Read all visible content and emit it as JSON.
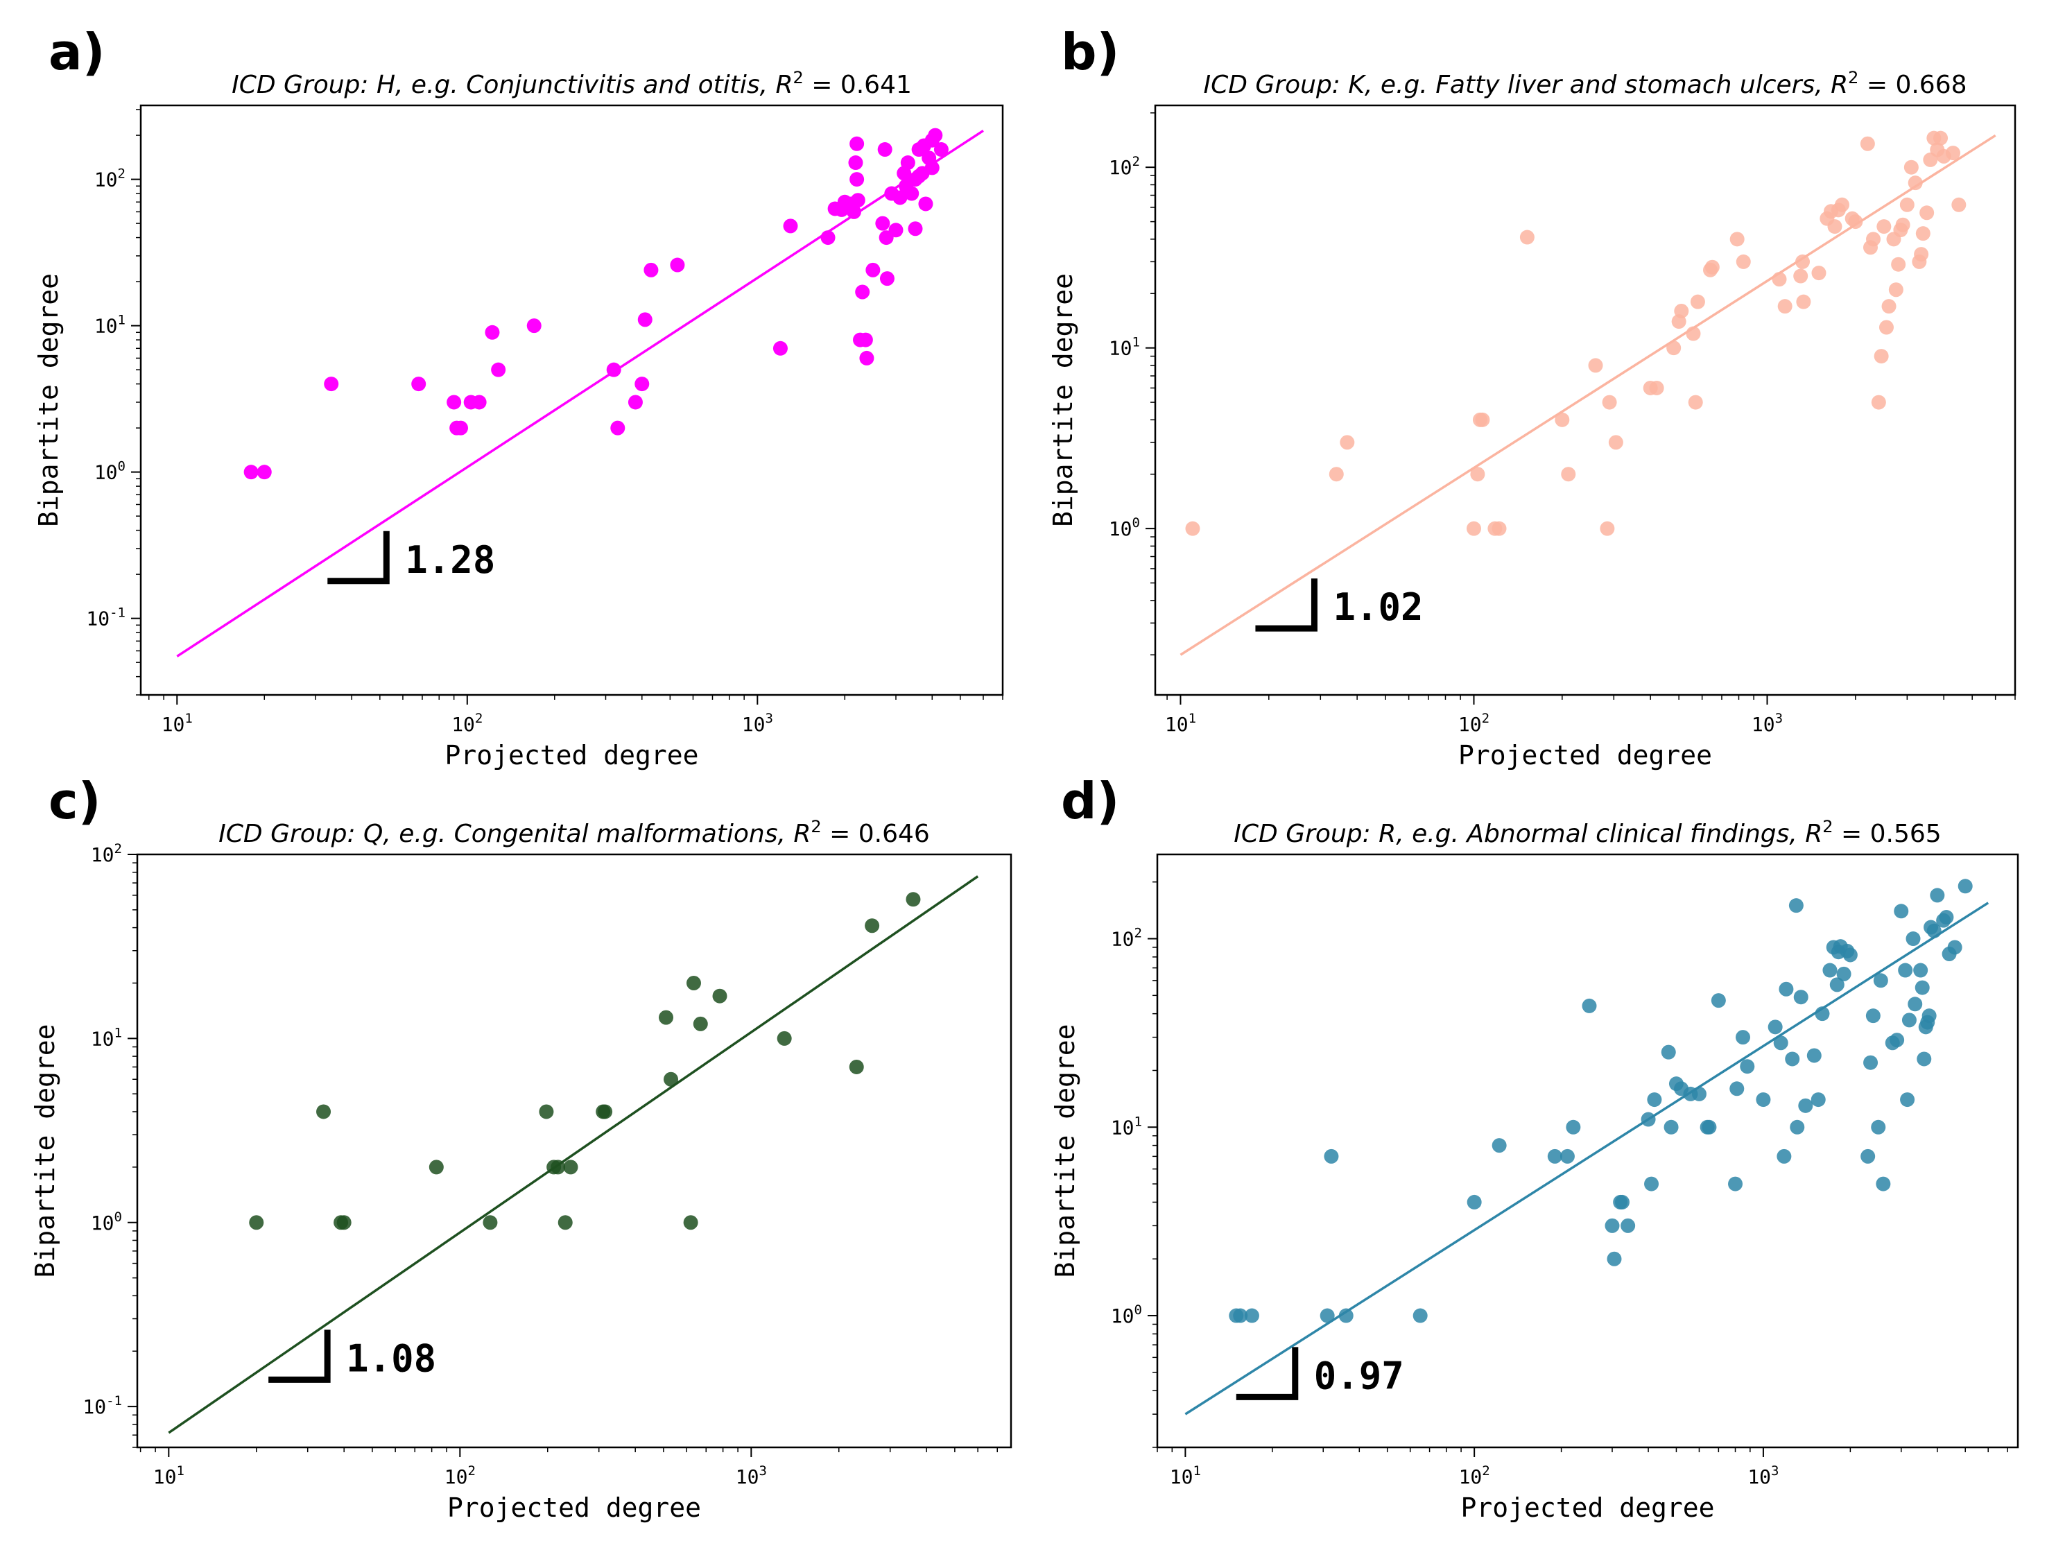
{
  "chart_data": [
    {
      "type": "scatter",
      "panel_label": "a)",
      "title": "ICD Group: H, e.g. Conjunctivitis and otitis, R² = 0.641",
      "title_parts": {
        "prefix": "ICD Group",
        "code": "H",
        "example": "Conjunctivitis and otitis",
        "r2_label": "R",
        "r2_value": "0.641"
      },
      "xlabel": "Projected degree",
      "ylabel": "Bipartite degree",
      "xscale": "log",
      "yscale": "log",
      "xlim": [
        7.5,
        7000
      ],
      "ylim": [
        0.03,
        320
      ],
      "xticks": [
        {
          "exp": "1",
          "value": 10
        },
        {
          "exp": "2",
          "value": 100
        },
        {
          "exp": "3",
          "value": 1000
        }
      ],
      "yticks": [
        {
          "exp": "-1",
          "value": 0.1
        },
        {
          "exp": "0",
          "value": 1
        },
        {
          "exp": "1",
          "value": 10
        },
        {
          "exp": "2",
          "value": 100
        }
      ],
      "color": "#ff00ff",
      "fit_line": {
        "x": [
          10,
          6000
        ],
        "y": [
          0.055,
          215
        ]
      },
      "slope_label": "1.28",
      "slope_marker": {
        "x": 33,
        "y": 0.18
      },
      "points": [
        [
          18,
          1
        ],
        [
          20,
          1
        ],
        [
          34,
          4
        ],
        [
          68,
          4
        ],
        [
          90,
          3
        ],
        [
          92,
          2
        ],
        [
          95,
          2
        ],
        [
          103,
          3
        ],
        [
          110,
          3
        ],
        [
          122,
          9
        ],
        [
          128,
          5
        ],
        [
          170,
          10
        ],
        [
          320,
          5
        ],
        [
          330,
          2
        ],
        [
          380,
          3
        ],
        [
          400,
          4
        ],
        [
          410,
          11
        ],
        [
          430,
          24
        ],
        [
          530,
          26
        ],
        [
          1200,
          7
        ],
        [
          1300,
          48
        ],
        [
          1750,
          40
        ],
        [
          1850,
          63
        ],
        [
          1950,
          62
        ],
        [
          2000,
          70
        ],
        [
          2050,
          65
        ],
        [
          2100,
          68
        ],
        [
          2150,
          60
        ],
        [
          2180,
          130
        ],
        [
          2200,
          175
        ],
        [
          2200,
          100
        ],
        [
          2220,
          72
        ],
        [
          2260,
          8
        ],
        [
          2300,
          17
        ],
        [
          2360,
          8
        ],
        [
          2380,
          6
        ],
        [
          2500,
          24
        ],
        [
          2700,
          50
        ],
        [
          2750,
          160
        ],
        [
          2780,
          40
        ],
        [
          2800,
          21
        ],
        [
          2900,
          80
        ],
        [
          3000,
          45
        ],
        [
          3100,
          75
        ],
        [
          3200,
          110
        ],
        [
          3250,
          90
        ],
        [
          3300,
          130
        ],
        [
          3400,
          80
        ],
        [
          3500,
          100
        ],
        [
          3500,
          46
        ],
        [
          3600,
          105
        ],
        [
          3600,
          160
        ],
        [
          3700,
          110
        ],
        [
          3750,
          170
        ],
        [
          3800,
          68
        ],
        [
          3900,
          140
        ],
        [
          4000,
          120
        ],
        [
          4000,
          185
        ],
        [
          4100,
          200
        ],
        [
          4300,
          160
        ]
      ]
    },
    {
      "type": "scatter",
      "panel_label": "b)",
      "title": "ICD Group: K, e.g. Fatty liver and stomach ulcers, R² = 0.668",
      "title_parts": {
        "prefix": "ICD Group",
        "code": "K",
        "example": "Fatty liver and stomach ulcers",
        "r2_label": "R",
        "r2_value": "0.668"
      },
      "xlabel": "Projected degree",
      "ylabel": "Bipartite degree",
      "xscale": "log",
      "yscale": "log",
      "xlim": [
        8.2,
        7000
      ],
      "ylim": [
        0.12,
        220
      ],
      "xticks": [
        {
          "exp": "1",
          "value": 10
        },
        {
          "exp": "2",
          "value": 100
        },
        {
          "exp": "3",
          "value": 1000
        }
      ],
      "yticks": [
        {
          "exp": "0",
          "value": 1
        },
        {
          "exp": "1",
          "value": 10
        },
        {
          "exp": "2",
          "value": 100
        }
      ],
      "color": "#fbb4a0",
      "fit_line": {
        "x": [
          10,
          6000
        ],
        "y": [
          0.2,
          150
        ]
      },
      "slope_label": "1.02",
      "slope_marker": {
        "x": 18,
        "y": 0.28
      },
      "points": [
        [
          11,
          1
        ],
        [
          34,
          2
        ],
        [
          37,
          3
        ],
        [
          100,
          1
        ],
        [
          103,
          2
        ],
        [
          105,
          4
        ],
        [
          107,
          4
        ],
        [
          118,
          1
        ],
        [
          122,
          1
        ],
        [
          152,
          41
        ],
        [
          200,
          4
        ],
        [
          210,
          2
        ],
        [
          260,
          8
        ],
        [
          285,
          1
        ],
        [
          290,
          5
        ],
        [
          305,
          3
        ],
        [
          400,
          6
        ],
        [
          420,
          6
        ],
        [
          480,
          10
        ],
        [
          500,
          14
        ],
        [
          510,
          16
        ],
        [
          560,
          12
        ],
        [
          570,
          5
        ],
        [
          580,
          18
        ],
        [
          640,
          27
        ],
        [
          650,
          28
        ],
        [
          790,
          40
        ],
        [
          830,
          30
        ],
        [
          1100,
          24
        ],
        [
          1150,
          17
        ],
        [
          1300,
          25
        ],
        [
          1320,
          30
        ],
        [
          1330,
          18
        ],
        [
          1500,
          26
        ],
        [
          1600,
          52
        ],
        [
          1650,
          57
        ],
        [
          1700,
          47
        ],
        [
          1750,
          58
        ],
        [
          1800,
          62
        ],
        [
          1950,
          52
        ],
        [
          2000,
          50
        ],
        [
          2200,
          135
        ],
        [
          2250,
          36
        ],
        [
          2300,
          40
        ],
        [
          2400,
          5
        ],
        [
          2450,
          9
        ],
        [
          2500,
          47
        ],
        [
          2550,
          13
        ],
        [
          2600,
          17
        ],
        [
          2700,
          40
        ],
        [
          2750,
          21
        ],
        [
          2800,
          29
        ],
        [
          2850,
          45
        ],
        [
          2900,
          48
        ],
        [
          3000,
          62
        ],
        [
          3100,
          100
        ],
        [
          3200,
          82
        ],
        [
          3300,
          30
        ],
        [
          3350,
          33
        ],
        [
          3400,
          43
        ],
        [
          3500,
          56
        ],
        [
          3600,
          110
        ],
        [
          3700,
          145
        ],
        [
          3800,
          125
        ],
        [
          3900,
          145
        ],
        [
          4000,
          115
        ],
        [
          4300,
          120
        ],
        [
          4500,
          62
        ]
      ]
    },
    {
      "type": "scatter",
      "panel_label": "c)",
      "title": "ICD Group: Q, e.g. Congenital malformations, R² = 0.646",
      "title_parts": {
        "prefix": "ICD Group",
        "code": "Q",
        "example": "Congenital malformations",
        "r2_label": "R",
        "r2_value": "0.646"
      },
      "xlabel": "Projected degree",
      "ylabel": "Bipartite degree",
      "xscale": "log",
      "yscale": "log",
      "xlim": [
        7.8,
        7800
      ],
      "ylim": [
        0.06,
        100
      ],
      "xticks": [
        {
          "exp": "1",
          "value": 10
        },
        {
          "exp": "2",
          "value": 100
        },
        {
          "exp": "3",
          "value": 1000
        }
      ],
      "yticks": [
        {
          "exp": "-1",
          "value": 0.1
        },
        {
          "exp": "0",
          "value": 1
        },
        {
          "exp": "1",
          "value": 10
        },
        {
          "exp": "2",
          "value": 100
        }
      ],
      "color": "#1e5020",
      "fit_line": {
        "x": [
          10,
          6000
        ],
        "y": [
          0.072,
          76
        ]
      },
      "slope_label": "1.08",
      "slope_marker": {
        "x": 22,
        "y": 0.14
      },
      "points": [
        [
          20,
          1
        ],
        [
          34,
          4
        ],
        [
          39,
          1
        ],
        [
          40,
          1
        ],
        [
          83,
          2
        ],
        [
          127,
          1
        ],
        [
          198,
          4
        ],
        [
          210,
          2
        ],
        [
          217,
          2
        ],
        [
          230,
          1
        ],
        [
          240,
          2
        ],
        [
          310,
          4
        ],
        [
          315,
          4
        ],
        [
          510,
          13
        ],
        [
          530,
          6
        ],
        [
          620,
          1
        ],
        [
          635,
          20
        ],
        [
          670,
          12
        ],
        [
          780,
          17
        ],
        [
          1300,
          10
        ],
        [
          2300,
          7
        ],
        [
          2600,
          41
        ],
        [
          3600,
          57
        ]
      ]
    },
    {
      "type": "scatter",
      "panel_label": "d)",
      "title": "ICD Group: R, e.g. Abnormal clinical findings, R² = 0.565",
      "title_parts": {
        "prefix": "ICD Group",
        "code": "R",
        "example": "Abnormal clinical findings",
        "r2_label": "R",
        "r2_value": "0.565"
      },
      "xlabel": "Projected degree",
      "ylabel": "Bipartite degree",
      "xscale": "log",
      "yscale": "log",
      "xlim": [
        8,
        7600
      ],
      "ylim": [
        0.2,
        280
      ],
      "xticks": [
        {
          "exp": "1",
          "value": 10
        },
        {
          "exp": "2",
          "value": 100
        },
        {
          "exp": "3",
          "value": 1000
        }
      ],
      "yticks": [
        {
          "exp": "0",
          "value": 1
        },
        {
          "exp": "1",
          "value": 10
        },
        {
          "exp": "2",
          "value": 100
        }
      ],
      "color": "#2e86a8",
      "fit_line": {
        "x": [
          10,
          6000
        ],
        "y": [
          0.3,
          155
        ]
      },
      "slope_label": "0.97",
      "slope_marker": {
        "x": 15,
        "y": 0.37
      },
      "points": [
        [
          15,
          1
        ],
        [
          15.5,
          1
        ],
        [
          17,
          1
        ],
        [
          31,
          1
        ],
        [
          32,
          7
        ],
        [
          36,
          1
        ],
        [
          65,
          1
        ],
        [
          100,
          4
        ],
        [
          122,
          8
        ],
        [
          190,
          7
        ],
        [
          210,
          7
        ],
        [
          220,
          10
        ],
        [
          250,
          44
        ],
        [
          300,
          3
        ],
        [
          305,
          2
        ],
        [
          320,
          4
        ],
        [
          325,
          4
        ],
        [
          340,
          3
        ],
        [
          400,
          11
        ],
        [
          410,
          5
        ],
        [
          420,
          14
        ],
        [
          470,
          25
        ],
        [
          480,
          10
        ],
        [
          500,
          17
        ],
        [
          520,
          16
        ],
        [
          560,
          15
        ],
        [
          600,
          15
        ],
        [
          640,
          10
        ],
        [
          650,
          10
        ],
        [
          700,
          47
        ],
        [
          800,
          5
        ],
        [
          810,
          16
        ],
        [
          850,
          30
        ],
        [
          880,
          21
        ],
        [
          1000,
          14
        ],
        [
          1100,
          34
        ],
        [
          1150,
          28
        ],
        [
          1180,
          7
        ],
        [
          1200,
          54
        ],
        [
          1260,
          23
        ],
        [
          1300,
          150
        ],
        [
          1310,
          10
        ],
        [
          1350,
          49
        ],
        [
          1400,
          13
        ],
        [
          1500,
          24
        ],
        [
          1550,
          14
        ],
        [
          1600,
          40
        ],
        [
          1700,
          68
        ],
        [
          1750,
          90
        ],
        [
          1800,
          57
        ],
        [
          1820,
          85
        ],
        [
          1850,
          91
        ],
        [
          1900,
          65
        ],
        [
          1950,
          86
        ],
        [
          2000,
          82
        ],
        [
          2300,
          7
        ],
        [
          2350,
          22
        ],
        [
          2400,
          39
        ],
        [
          2500,
          10
        ],
        [
          2550,
          60
        ],
        [
          2600,
          5
        ],
        [
          2800,
          28
        ],
        [
          2900,
          29
        ],
        [
          3000,
          140
        ],
        [
          3100,
          68
        ],
        [
          3150,
          14
        ],
        [
          3200,
          37
        ],
        [
          3300,
          100
        ],
        [
          3350,
          45
        ],
        [
          3500,
          68
        ],
        [
          3550,
          55
        ],
        [
          3600,
          23
        ],
        [
          3650,
          34
        ],
        [
          3700,
          36
        ],
        [
          3750,
          39
        ],
        [
          3800,
          115
        ],
        [
          3900,
          110
        ],
        [
          4000,
          170
        ],
        [
          4200,
          125
        ],
        [
          4300,
          130
        ],
        [
          4400,
          83
        ],
        [
          4600,
          90
        ],
        [
          5000,
          190
        ]
      ]
    }
  ]
}
